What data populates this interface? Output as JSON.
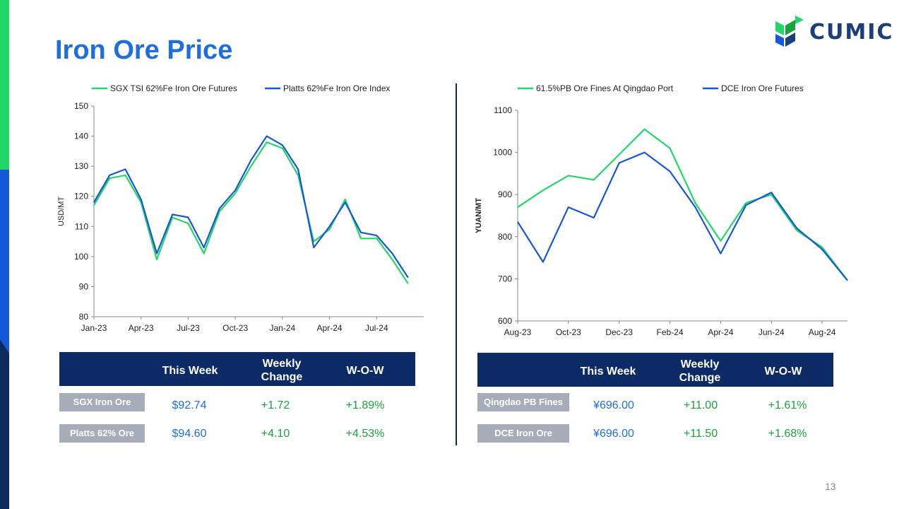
{
  "page": {
    "title": "Iron Ore Price",
    "logo_text": "CUMIC",
    "page_number": "13"
  },
  "colors": {
    "green": "#22d66a",
    "blue": "#1558d6",
    "title": "#1f6ee0",
    "header": "#0c2a66",
    "label_bg": "#a6acb8",
    "positive": "#1aa33a"
  },
  "chart_data": [
    {
      "type": "line",
      "ylabel": "USD/MT",
      "xlabel": "",
      "ylim": [
        80,
        150
      ],
      "yticks": [
        80,
        90,
        100,
        110,
        120,
        130,
        140,
        150
      ],
      "xticks": [
        "Jan-23",
        "Apr-23",
        "Jul-23",
        "Oct-23",
        "Jan-24",
        "Apr-24",
        "Jul-24"
      ],
      "xrange": [
        "2023-01",
        "2024-10"
      ],
      "legend": "top",
      "grid": false,
      "series": [
        {
          "name": "SGX TSI 62%Fe Iron Ore Futures",
          "color": "#22d66a",
          "x": [
            "2023-01",
            "2023-02",
            "2023-03",
            "2023-04",
            "2023-05",
            "2023-06",
            "2023-07",
            "2023-08",
            "2023-09",
            "2023-10",
            "2023-11",
            "2023-12",
            "2024-01",
            "2024-02",
            "2024-03",
            "2024-04",
            "2024-05",
            "2024-06",
            "2024-07",
            "2024-08",
            "2024-09"
          ],
          "values": [
            117,
            126,
            127,
            118,
            99,
            113,
            111,
            101,
            115,
            121,
            130,
            138,
            136,
            127,
            105,
            109,
            119,
            106,
            106,
            99,
            91
          ]
        },
        {
          "name": "Platts 62%Fe Iron Ore Index",
          "color": "#1558d6",
          "x": [
            "2023-01",
            "2023-02",
            "2023-03",
            "2023-04",
            "2023-05",
            "2023-06",
            "2023-07",
            "2023-08",
            "2023-09",
            "2023-10",
            "2023-11",
            "2023-12",
            "2024-01",
            "2024-02",
            "2024-03",
            "2024-04",
            "2024-05",
            "2024-06",
            "2024-07",
            "2024-08",
            "2024-09"
          ],
          "values": [
            118,
            127,
            129,
            119,
            101,
            114,
            113,
            103,
            116,
            122,
            132,
            140,
            137,
            129,
            103,
            110,
            118,
            108,
            107,
            101,
            93
          ]
        }
      ]
    },
    {
      "type": "line",
      "ylabel": "YUAN/MT",
      "xlabel": "",
      "ylim": [
        600,
        1100
      ],
      "yticks": [
        600,
        700,
        800,
        900,
        1000,
        1100
      ],
      "xticks": [
        "Aug-23",
        "Oct-23",
        "Dec-23",
        "Feb-24",
        "Apr-24",
        "Jun-24",
        "Aug-24"
      ],
      "xrange": [
        "2023-08",
        "2024-09"
      ],
      "legend": "top",
      "grid": false,
      "series": [
        {
          "name": "61.5%PB Ore Fines At Qingdao Port",
          "color": "#22d66a",
          "x": [
            "2023-08",
            "2023-09",
            "2023-10",
            "2023-11",
            "2023-12",
            "2024-01",
            "2024-02",
            "2024-03",
            "2024-04",
            "2024-05",
            "2024-06",
            "2024-07",
            "2024-08",
            "2024-09"
          ],
          "values": [
            870,
            910,
            945,
            935,
            995,
            1055,
            1010,
            880,
            790,
            880,
            900,
            815,
            775,
            696
          ]
        },
        {
          "name": "DCE Iron Ore Futures",
          "color": "#1558d6",
          "x": [
            "2023-08",
            "2023-09",
            "2023-10",
            "2023-11",
            "2023-12",
            "2024-01",
            "2024-02",
            "2024-03",
            "2024-04",
            "2024-05",
            "2024-06",
            "2024-07",
            "2024-08",
            "2024-09"
          ],
          "values": [
            835,
            740,
            870,
            845,
            975,
            1000,
            955,
            870,
            760,
            875,
            905,
            820,
            770,
            696
          ]
        }
      ]
    }
  ],
  "table_left": {
    "headers": [
      "This Week",
      "Weekly\nChange",
      "W-O-W"
    ],
    "rows": [
      {
        "label": "SGX Iron Ore",
        "this_week": "$92.74",
        "change": "+1.72",
        "wow": "+1.89%"
      },
      {
        "label": "Platts 62% Ore",
        "this_week": "$94.60",
        "change": "+4.10",
        "wow": "+4.53%"
      }
    ]
  },
  "table_right": {
    "headers": [
      "This Week",
      "Weekly\nChange",
      "W-O-W"
    ],
    "rows": [
      {
        "label": "Qingdao PB Fines",
        "this_week": "¥696.00",
        "change": "+11.00",
        "wow": "+1.61%"
      },
      {
        "label": "DCE Iron Ore",
        "this_week": "¥696.00",
        "change": "+11.50",
        "wow": "+1.68%"
      }
    ]
  }
}
